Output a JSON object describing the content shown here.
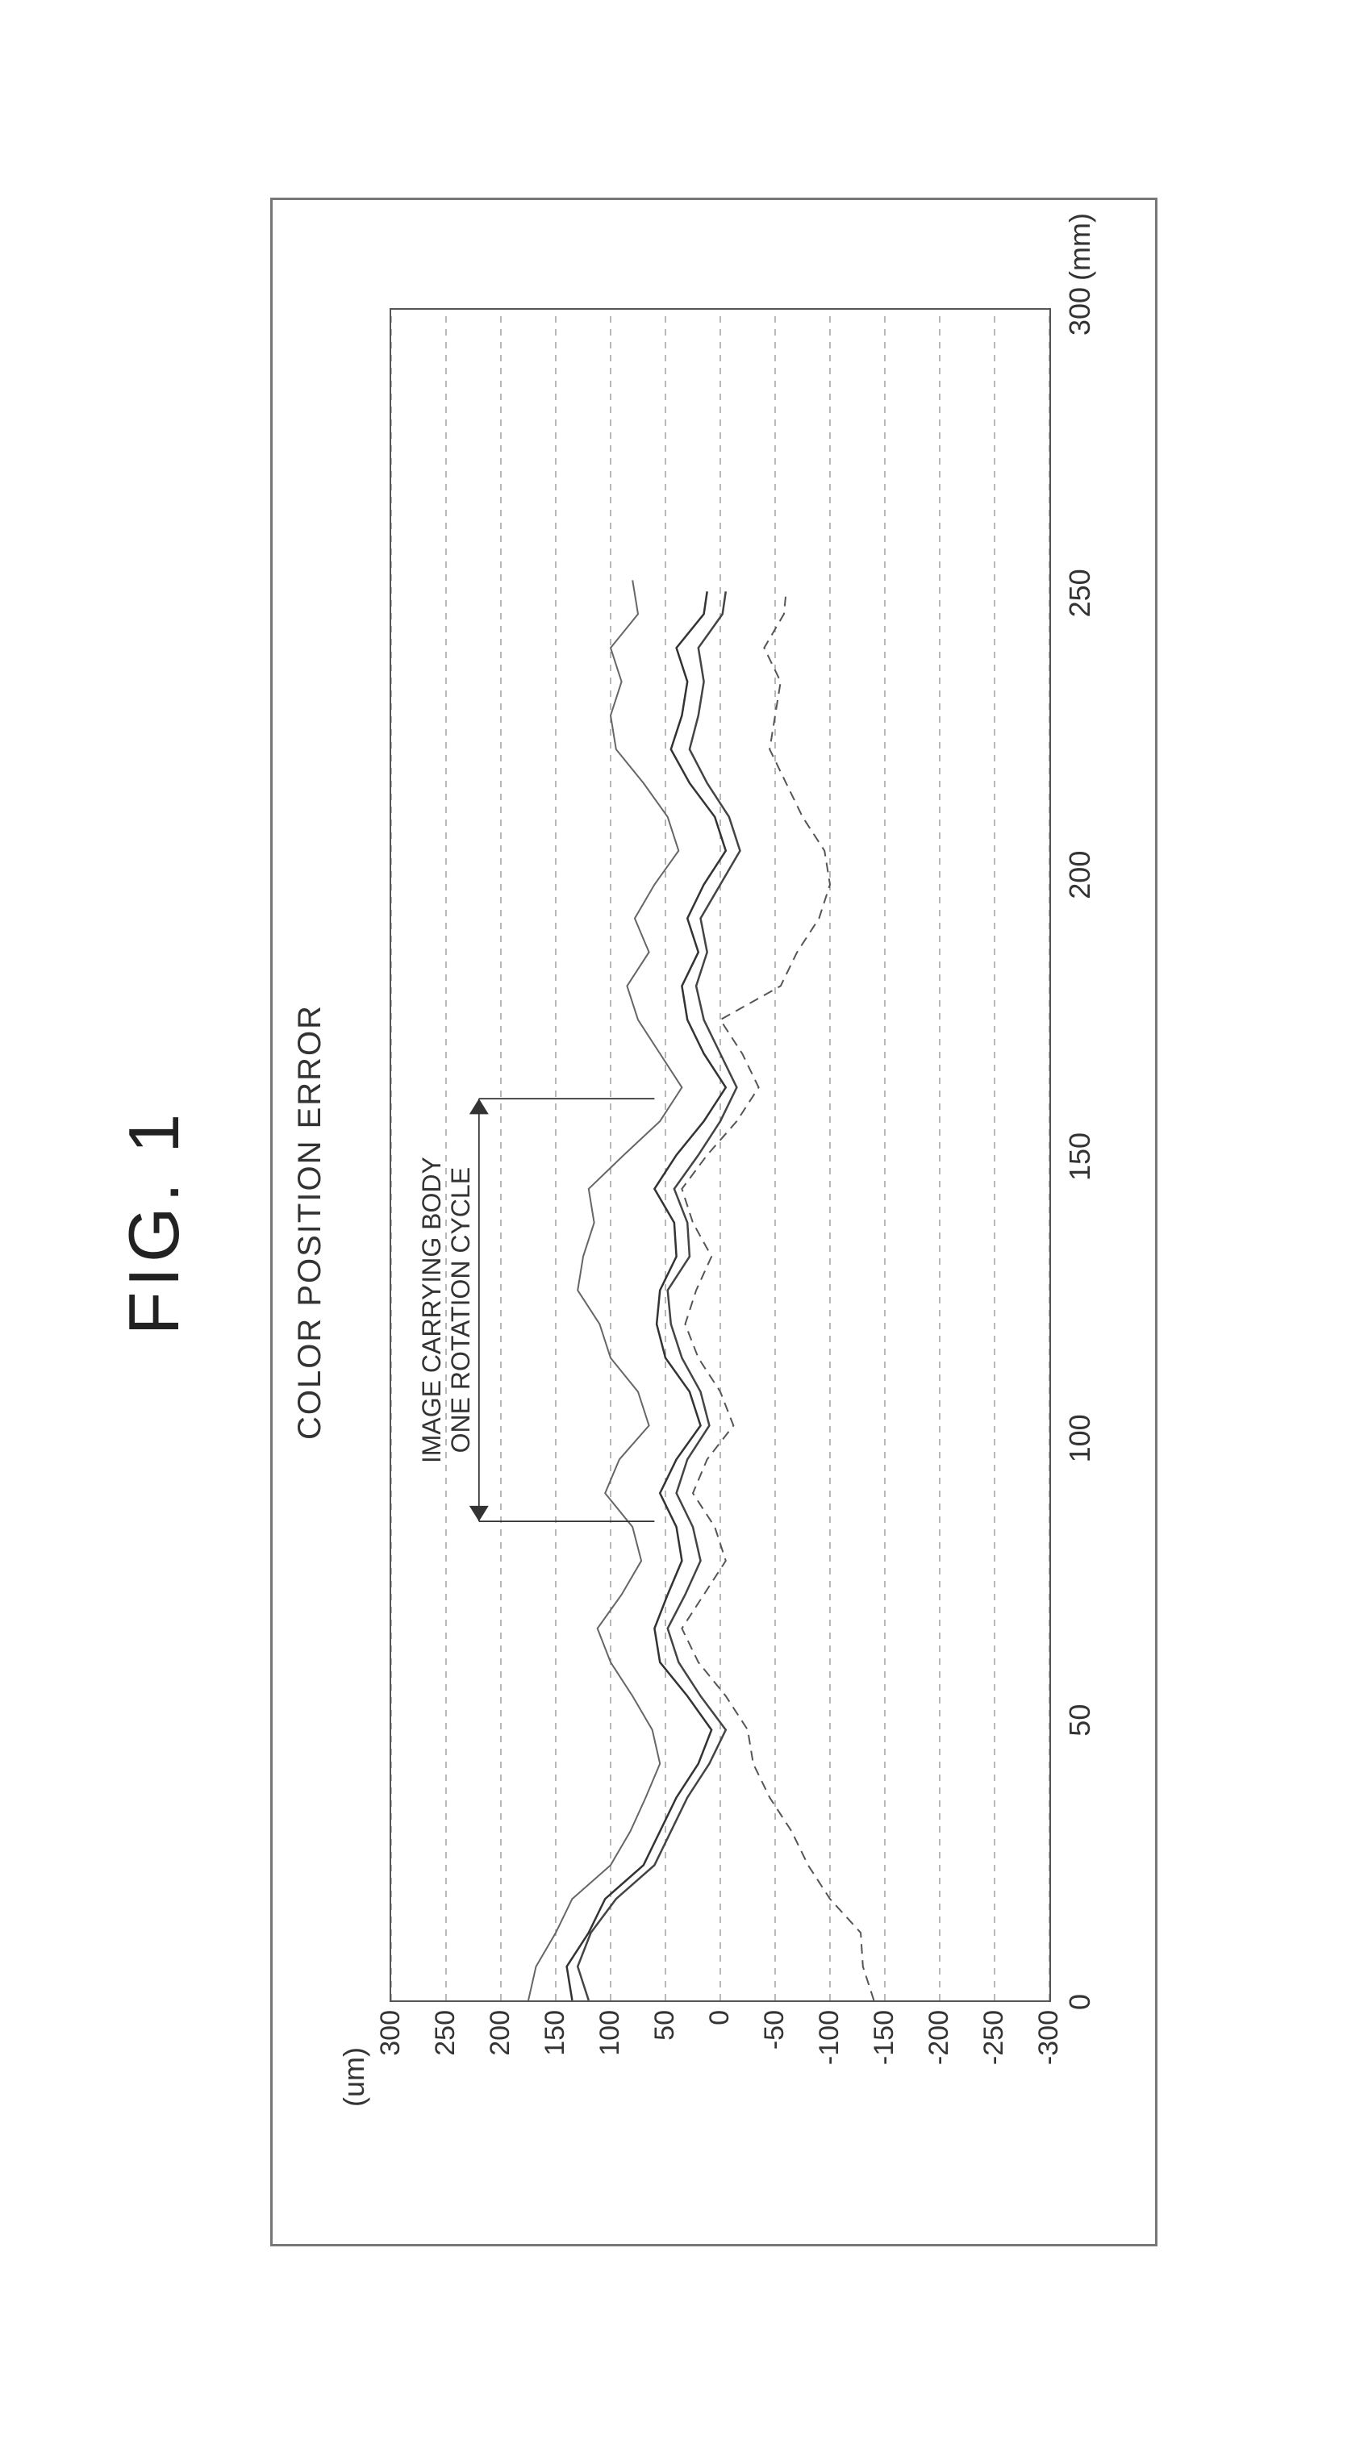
{
  "figure_label": "FIG. 1",
  "chart": {
    "type": "line",
    "title": "COLOR POSITION ERROR",
    "y_unit_label": "(um)",
    "x_unit_label": "(mm)",
    "background_color": "#ffffff",
    "panel_border_color": "#777777",
    "plot_border_color": "#555555",
    "grid_color": "#888888",
    "grid_dash": "8 8",
    "grid_width": 1.2,
    "axis_color": "#333333",
    "font_color": "#333333",
    "title_fontsize": 40,
    "tick_fontsize": 34,
    "xlim": [
      0,
      300
    ],
    "ylim": [
      -300,
      300
    ],
    "xtick_step": 50,
    "xticks": [
      0,
      50,
      100,
      150,
      200,
      250,
      300
    ],
    "ytick_step": 50,
    "yticks": [
      300,
      250,
      200,
      150,
      100,
      50,
      0,
      -50,
      -100,
      -150,
      -200,
      -250,
      -300
    ],
    "series": [
      {
        "name": "trace-1",
        "stroke": "#333333",
        "stroke_width": 2.5,
        "dash": null,
        "data": [
          [
            0,
            135
          ],
          [
            6,
            140
          ],
          [
            12,
            120
          ],
          [
            18,
            105
          ],
          [
            24,
            70
          ],
          [
            30,
            55
          ],
          [
            36,
            40
          ],
          [
            42,
            20
          ],
          [
            48,
            8
          ],
          [
            54,
            30
          ],
          [
            60,
            55
          ],
          [
            66,
            60
          ],
          [
            72,
            48
          ],
          [
            78,
            35
          ],
          [
            84,
            40
          ],
          [
            90,
            55
          ],
          [
            96,
            40
          ],
          [
            102,
            18
          ],
          [
            108,
            28
          ],
          [
            114,
            50
          ],
          [
            120,
            58
          ],
          [
            126,
            55
          ],
          [
            132,
            40
          ],
          [
            138,
            42
          ],
          [
            144,
            60
          ],
          [
            150,
            40
          ],
          [
            156,
            15
          ],
          [
            162,
            -5
          ],
          [
            168,
            15
          ],
          [
            174,
            30
          ],
          [
            180,
            35
          ],
          [
            186,
            20
          ],
          [
            192,
            30
          ],
          [
            198,
            15
          ],
          [
            204,
            -5
          ],
          [
            210,
            5
          ],
          [
            216,
            28
          ],
          [
            222,
            45
          ],
          [
            228,
            35
          ],
          [
            234,
            30
          ],
          [
            240,
            40
          ],
          [
            246,
            15
          ],
          [
            250,
            12
          ]
        ]
      },
      {
        "name": "trace-2",
        "stroke": "#444444",
        "stroke_width": 2.5,
        "dash": null,
        "data": [
          [
            0,
            120
          ],
          [
            6,
            130
          ],
          [
            12,
            118
          ],
          [
            18,
            95
          ],
          [
            24,
            60
          ],
          [
            30,
            45
          ],
          [
            36,
            30
          ],
          [
            42,
            10
          ],
          [
            48,
            -5
          ],
          [
            54,
            18
          ],
          [
            60,
            38
          ],
          [
            66,
            48
          ],
          [
            72,
            32
          ],
          [
            78,
            18
          ],
          [
            84,
            25
          ],
          [
            90,
            40
          ],
          [
            96,
            30
          ],
          [
            102,
            10
          ],
          [
            108,
            18
          ],
          [
            114,
            35
          ],
          [
            120,
            45
          ],
          [
            126,
            48
          ],
          [
            132,
            28
          ],
          [
            138,
            30
          ],
          [
            144,
            42
          ],
          [
            150,
            20
          ],
          [
            156,
            0
          ],
          [
            162,
            -15
          ],
          [
            168,
            0
          ],
          [
            174,
            15
          ],
          [
            180,
            22
          ],
          [
            186,
            12
          ],
          [
            192,
            18
          ],
          [
            198,
            0
          ],
          [
            204,
            -18
          ],
          [
            210,
            -8
          ],
          [
            216,
            12
          ],
          [
            222,
            28
          ],
          [
            228,
            20
          ],
          [
            234,
            15
          ],
          [
            240,
            20
          ],
          [
            246,
            -2
          ],
          [
            250,
            -5
          ]
        ]
      },
      {
        "name": "trace-3",
        "stroke": "#666666",
        "stroke_width": 2.0,
        "dash": null,
        "data": [
          [
            0,
            175
          ],
          [
            6,
            168
          ],
          [
            12,
            150
          ],
          [
            18,
            135
          ],
          [
            24,
            100
          ],
          [
            30,
            82
          ],
          [
            36,
            68
          ],
          [
            42,
            55
          ],
          [
            48,
            62
          ],
          [
            54,
            80
          ],
          [
            60,
            100
          ],
          [
            66,
            112
          ],
          [
            72,
            90
          ],
          [
            78,
            72
          ],
          [
            84,
            80
          ],
          [
            90,
            105
          ],
          [
            96,
            92
          ],
          [
            102,
            65
          ],
          [
            108,
            75
          ],
          [
            114,
            100
          ],
          [
            120,
            110
          ],
          [
            126,
            130
          ],
          [
            132,
            125
          ],
          [
            138,
            115
          ],
          [
            144,
            120
          ],
          [
            150,
            88
          ],
          [
            156,
            55
          ],
          [
            162,
            35
          ],
          [
            168,
            55
          ],
          [
            174,
            75
          ],
          [
            180,
            85
          ],
          [
            186,
            65
          ],
          [
            192,
            78
          ],
          [
            198,
            60
          ],
          [
            204,
            38
          ],
          [
            210,
            48
          ],
          [
            216,
            70
          ],
          [
            222,
            95
          ],
          [
            228,
            100
          ],
          [
            234,
            90
          ],
          [
            240,
            100
          ],
          [
            246,
            75
          ],
          [
            252,
            80
          ]
        ]
      },
      {
        "name": "trace-4",
        "stroke": "#555555",
        "stroke_width": 2.0,
        "dash": "12 8",
        "data": [
          [
            0,
            -140
          ],
          [
            6,
            -130
          ],
          [
            12,
            -128
          ],
          [
            18,
            -100
          ],
          [
            24,
            -80
          ],
          [
            30,
            -65
          ],
          [
            36,
            -45
          ],
          [
            42,
            -30
          ],
          [
            48,
            -25
          ],
          [
            54,
            -5
          ],
          [
            60,
            20
          ],
          [
            66,
            35
          ],
          [
            72,
            15
          ],
          [
            78,
            -5
          ],
          [
            84,
            5
          ],
          [
            90,
            25
          ],
          [
            96,
            12
          ],
          [
            102,
            -12
          ],
          [
            108,
            0
          ],
          [
            114,
            20
          ],
          [
            120,
            32
          ],
          [
            126,
            22
          ],
          [
            132,
            8
          ],
          [
            138,
            25
          ],
          [
            144,
            35
          ],
          [
            150,
            12
          ],
          [
            156,
            -15
          ],
          [
            162,
            -35
          ],
          [
            168,
            -20
          ],
          [
            174,
            0
          ],
          [
            180,
            -55
          ],
          [
            186,
            -70
          ],
          [
            192,
            -90
          ],
          [
            198,
            -100
          ],
          [
            204,
            -95
          ],
          [
            210,
            -75
          ],
          [
            216,
            -60
          ],
          [
            222,
            -45
          ],
          [
            228,
            -50
          ],
          [
            234,
            -55
          ],
          [
            240,
            -40
          ],
          [
            246,
            -58
          ],
          [
            250,
            -60
          ]
        ]
      }
    ],
    "annotation": {
      "text_line1": "IMAGE CARRYING BODY",
      "text_line2": "ONE ROTATION CYCLE",
      "x_start": 85,
      "x_end": 160,
      "y_line": 220,
      "arrow_color": "#333333",
      "arrow_width": 1.8
    }
  }
}
